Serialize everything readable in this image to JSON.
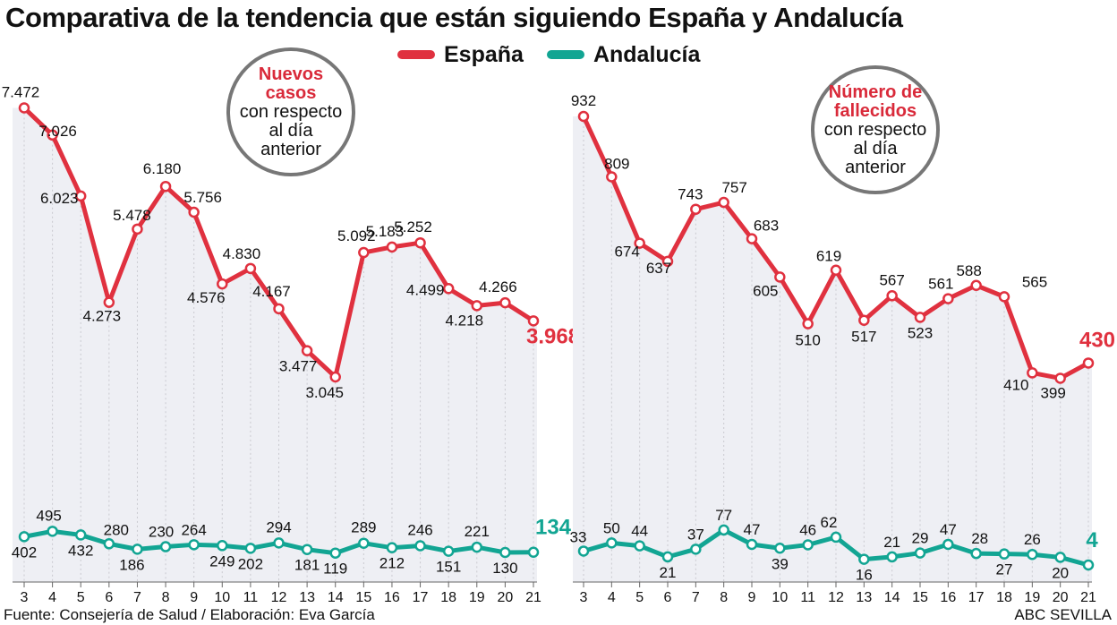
{
  "title": "Comparativa de la tendencia que están siguiendo España y Andalucía",
  "legend": [
    {
      "name": "España",
      "color": "#e0313f"
    },
    {
      "name": "Andalucía",
      "color": "#12a593"
    }
  ],
  "chart_data": [
    {
      "type": "line",
      "annotation_highlight": "Nuevos casos",
      "annotation_text": [
        "con respecto",
        "al día",
        "anterior"
      ],
      "x": [
        "3",
        "4",
        "5",
        "6",
        "7",
        "8",
        "9",
        "10",
        "11",
        "12",
        "13",
        "14",
        "15",
        "16",
        "17",
        "18",
        "19",
        "20",
        "21"
      ],
      "series": [
        {
          "name": "España",
          "values": [
            7472,
            7026,
            6023,
            4273,
            5478,
            6180,
            5756,
            4576,
            4830,
            4167,
            3477,
            3045,
            5092,
            5183,
            5252,
            4499,
            4218,
            4266,
            3968
          ],
          "labels": [
            "7.472",
            "7.026",
            "6.023",
            "4.273",
            "5.478",
            "6.180",
            "5.756",
            "4.576",
            "4.830",
            "4.167",
            "3.477",
            "3.045",
            "5.092",
            "5.183",
            "5.252",
            "4.499",
            "4.218",
            "4.266",
            "3.968"
          ]
        },
        {
          "name": "Andalucía",
          "values": [
            402,
            495,
            432,
            280,
            186,
            230,
            264,
            249,
            202,
            294,
            181,
            119,
            289,
            212,
            246,
            151,
            221,
            130,
            134
          ],
          "labels": [
            "402",
            "495",
            "432",
            "280",
            "186",
            "230",
            "264",
            "249",
            "202",
            "294",
            "181",
            "119",
            "289",
            "212",
            "246",
            "151",
            "221",
            "130",
            "134"
          ]
        }
      ]
    },
    {
      "type": "line",
      "annotation_highlight": "Número de fallecidos",
      "annotation_text": [
        "con respecto",
        "al día",
        "anterior"
      ],
      "x": [
        "3",
        "4",
        "5",
        "6",
        "7",
        "8",
        "9",
        "10",
        "11",
        "12",
        "13",
        "14",
        "15",
        "16",
        "17",
        "18",
        "19",
        "20",
        "21"
      ],
      "series": [
        {
          "name": "España",
          "values": [
            932,
            809,
            674,
            637,
            743,
            757,
            683,
            605,
            510,
            619,
            517,
            567,
            523,
            561,
            588,
            565,
            410,
            399,
            430
          ],
          "labels": [
            "932",
            "809",
            "674",
            "637",
            "743",
            "757",
            "683",
            "605",
            "510",
            "619",
            "517",
            "567",
            "523",
            "561",
            "588",
            "565",
            "410",
            "399",
            "430"
          ]
        },
        {
          "name": "Andalucía",
          "values": [
            33,
            50,
            44,
            21,
            37,
            77,
            47,
            39,
            46,
            62,
            16,
            21,
            29,
            47,
            28,
            27,
            26,
            20,
            4
          ],
          "labels": [
            "33",
            "50",
            "44",
            "21",
            "37",
            "77",
            "47",
            "39",
            "46",
            "62",
            "16",
            "21",
            "29",
            "47",
            "28",
            "27",
            "26",
            "20",
            "4"
          ]
        }
      ]
    }
  ],
  "footer": {
    "source": "Fuente: Consejería de Salud / Elaboración: Eva García",
    "credit": "ABC SEVILLA"
  }
}
